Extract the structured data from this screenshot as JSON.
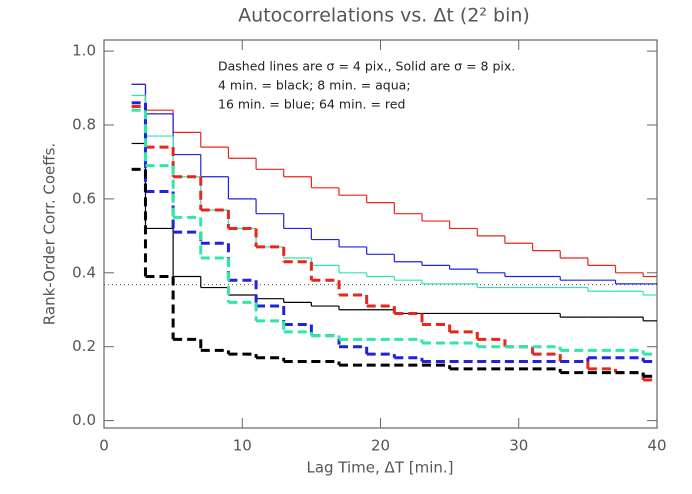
{
  "chart_data": {
    "type": "step",
    "title": "Autocorrelations vs. Δt (2² bin)",
    "x_label": "Lag Time, ΔT [min.]",
    "y_label": "Rank-Order Corr. Coeffs.",
    "annotations": [
      "Dashed lines are σ = 4 pix., Solid are σ = 8 pix.",
      "4 min. = black; 8 min. = aqua;",
      "16 min. = blue; 64 min. = red"
    ],
    "reference_line": 0.368,
    "xlim": [
      0,
      40
    ],
    "xticks": [
      0,
      10,
      20,
      30,
      40
    ],
    "ylim": [
      -0.02,
      1.03
    ],
    "yticks": [
      {
        "value": 0,
        "label": "0.0"
      },
      {
        "value": 0.2,
        "label": "0.2"
      },
      {
        "value": 0.4,
        "label": "0.4"
      },
      {
        "value": 0.6,
        "label": "0.6"
      },
      {
        "value": 0.8,
        "label": "0.8"
      },
      {
        "value": 1,
        "label": "1.0"
      }
    ],
    "x": [
      2,
      3,
      5,
      7,
      9,
      11,
      13,
      15,
      17,
      19,
      21,
      23,
      25,
      27,
      29,
      31,
      33,
      35,
      37,
      39
    ],
    "series": [
      {
        "color": "#e8261c",
        "dashed": false,
        "values": [
          0.91,
          0.84,
          0.78,
          0.74,
          0.71,
          0.68,
          0.66,
          0.63,
          0.61,
          0.59,
          0.56,
          0.54,
          0.52,
          0.5,
          0.48,
          0.46,
          0.44,
          0.42,
          0.4,
          0.39
        ]
      },
      {
        "color": "#2222dd",
        "dashed": false,
        "values": [
          0.91,
          0.83,
          0.72,
          0.66,
          0.6,
          0.56,
          0.52,
          0.49,
          0.47,
          0.45,
          0.43,
          0.42,
          0.41,
          0.4,
          0.39,
          0.39,
          0.38,
          0.38,
          0.37,
          0.37
        ]
      },
      {
        "color": "#2ee8a8",
        "dashed": false,
        "values": [
          0.88,
          0.77,
          0.66,
          0.57,
          0.52,
          0.47,
          0.44,
          0.42,
          0.4,
          0.39,
          0.38,
          0.37,
          0.37,
          0.36,
          0.36,
          0.36,
          0.36,
          0.35,
          0.35,
          0.34
        ]
      },
      {
        "color": "#000000",
        "dashed": false,
        "values": [
          0.75,
          0.52,
          0.39,
          0.36,
          0.34,
          0.33,
          0.32,
          0.31,
          0.3,
          0.3,
          0.29,
          0.29,
          0.29,
          0.29,
          0.29,
          0.29,
          0.28,
          0.28,
          0.28,
          0.27
        ]
      },
      {
        "color": "#e8261c",
        "dashed": true,
        "values": [
          0.85,
          0.74,
          0.66,
          0.57,
          0.52,
          0.47,
          0.43,
          0.38,
          0.34,
          0.31,
          0.29,
          0.26,
          0.24,
          0.22,
          0.2,
          0.18,
          0.16,
          0.14,
          0.13,
          0.11
        ]
      },
      {
        "color": "#2222dd",
        "dashed": true,
        "values": [
          0.86,
          0.62,
          0.51,
          0.48,
          0.38,
          0.31,
          0.26,
          0.23,
          0.2,
          0.18,
          0.17,
          0.16,
          0.16,
          0.16,
          0.16,
          0.16,
          0.16,
          0.17,
          0.17,
          0.16
        ]
      },
      {
        "color": "#2ee8a8",
        "dashed": true,
        "values": [
          0.84,
          0.69,
          0.55,
          0.44,
          0.32,
          0.27,
          0.24,
          0.23,
          0.22,
          0.22,
          0.22,
          0.21,
          0.21,
          0.2,
          0.2,
          0.2,
          0.19,
          0.19,
          0.19,
          0.18
        ]
      },
      {
        "color": "#000000",
        "dashed": true,
        "values": [
          0.68,
          0.39,
          0.22,
          0.19,
          0.18,
          0.17,
          0.16,
          0.16,
          0.15,
          0.15,
          0.15,
          0.15,
          0.14,
          0.14,
          0.14,
          0.14,
          0.13,
          0.13,
          0.13,
          0.12
        ]
      }
    ]
  }
}
